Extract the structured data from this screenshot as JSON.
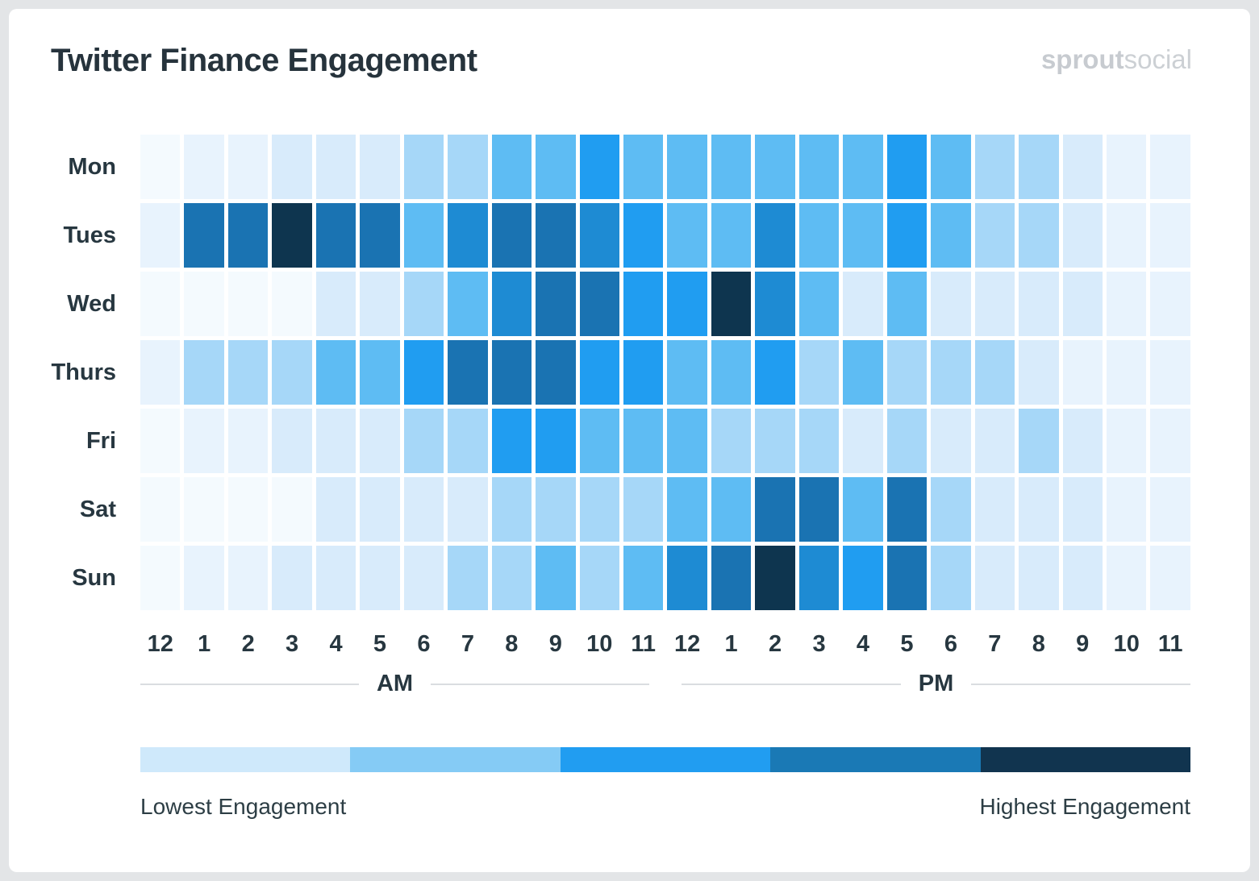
{
  "page": {
    "title": "Twitter Finance Engagement",
    "logo": {
      "bold": "sprout",
      "light": "social"
    }
  },
  "chart_data": {
    "type": "heatmap",
    "title": "Twitter Finance Engagement",
    "rows": [
      "Mon",
      "Tues",
      "Wed",
      "Thurs",
      "Fri",
      "Sat",
      "Sun"
    ],
    "columns": [
      "12",
      "1",
      "2",
      "3",
      "4",
      "5",
      "6",
      "7",
      "8",
      "9",
      "10",
      "11",
      "12",
      "1",
      "2",
      "3",
      "4",
      "5",
      "6",
      "7",
      "8",
      "9",
      "10",
      "11"
    ],
    "column_groups": [
      {
        "label": "AM",
        "span": 12
      },
      {
        "label": "PM",
        "span": 12
      }
    ],
    "value_scale": "engagement intensity level per cell, 0 = lowest, 8 = highest (read from color depth)",
    "values": [
      [
        0,
        1,
        1,
        2,
        2,
        2,
        3,
        3,
        4,
        4,
        5,
        4,
        4,
        4,
        4,
        4,
        4,
        5,
        4,
        3,
        3,
        2,
        1,
        1
      ],
      [
        1,
        7,
        7,
        8,
        7,
        7,
        4,
        6,
        7,
        7,
        6,
        5,
        4,
        4,
        6,
        4,
        4,
        5,
        4,
        3,
        3,
        2,
        1,
        1
      ],
      [
        0,
        0,
        0,
        0,
        2,
        2,
        3,
        4,
        6,
        7,
        7,
        5,
        5,
        8,
        6,
        4,
        2,
        4,
        2,
        2,
        2,
        2,
        1,
        1
      ],
      [
        1,
        3,
        3,
        3,
        4,
        4,
        5,
        7,
        7,
        7,
        5,
        5,
        4,
        4,
        5,
        3,
        4,
        3,
        3,
        3,
        2,
        1,
        1,
        1
      ],
      [
        0,
        1,
        1,
        2,
        2,
        2,
        3,
        3,
        5,
        5,
        4,
        4,
        4,
        3,
        3,
        3,
        2,
        3,
        2,
        2,
        3,
        2,
        1,
        1
      ],
      [
        0,
        0,
        0,
        0,
        2,
        2,
        2,
        2,
        3,
        3,
        3,
        3,
        4,
        4,
        7,
        7,
        4,
        7,
        3,
        2,
        2,
        2,
        1,
        1
      ],
      [
        0,
        1,
        1,
        2,
        2,
        2,
        2,
        3,
        3,
        4,
        3,
        4,
        6,
        7,
        8,
        6,
        5,
        7,
        3,
        2,
        2,
        2,
        1,
        1
      ]
    ],
    "palette": [
      "#f4fafe",
      "#e8f3fd",
      "#d8ebfb",
      "#a6d7f8",
      "#5ebcf3",
      "#209df1",
      "#1e8bd3",
      "#1a73b2",
      "#0e354f"
    ],
    "legend": {
      "low_label": "Lowest Engagement",
      "high_label": "Highest Engagement",
      "colors": [
        "#cfe9fb",
        "#85cbf5",
        "#219df1",
        "#1a79b5",
        "#11344f"
      ]
    }
  }
}
